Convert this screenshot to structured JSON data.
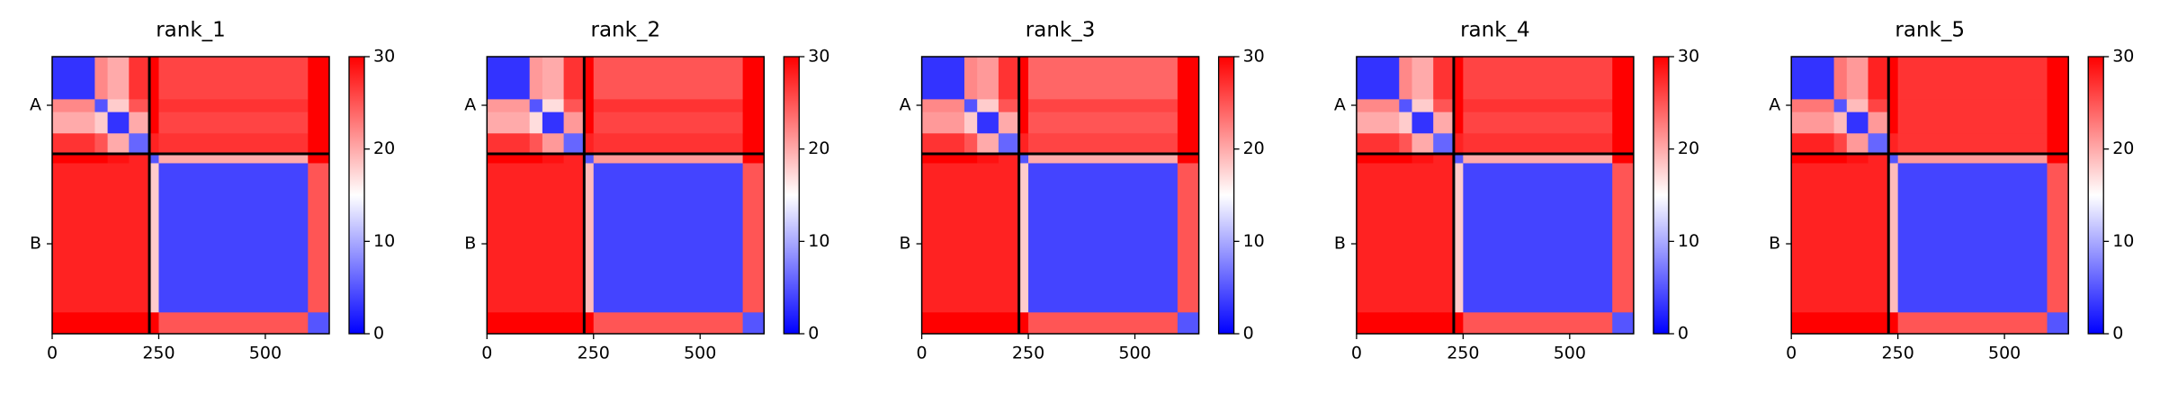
{
  "chart_data": [
    {
      "type": "heatmap",
      "title": "rank_1",
      "x_edges": [
        0,
        100,
        130,
        180,
        228,
        250,
        600,
        650
      ],
      "z": [
        [
          3,
          22,
          20,
          27,
          30,
          26,
          30
        ],
        [
          22,
          5,
          18,
          25,
          30,
          27,
          30
        ],
        [
          20,
          18,
          3,
          20,
          30,
          26,
          30
        ],
        [
          27,
          25,
          20,
          6,
          28,
          27,
          30
        ],
        [
          30,
          30,
          29,
          28,
          5,
          20,
          30
        ],
        [
          28,
          28,
          28,
          28,
          18,
          4,
          25
        ],
        [
          30,
          30,
          30,
          30,
          30,
          25,
          5
        ]
      ],
      "xlim": [
        0,
        650
      ],
      "ylim": [
        650,
        0
      ],
      "xticks": [
        0,
        250,
        500
      ],
      "yticks": [
        {
          "value": 114,
          "label": "A"
        },
        {
          "value": 439,
          "label": "B"
        }
      ],
      "chain_breaks": [
        228
      ],
      "colormap": "bwr",
      "clim": [
        0,
        30
      ],
      "cticks": [
        0,
        10,
        20,
        30
      ]
    },
    {
      "type": "heatmap",
      "title": "rank_2",
      "x_edges": [
        0,
        100,
        130,
        180,
        228,
        250,
        600,
        650
      ],
      "z": [
        [
          3,
          21,
          20,
          27,
          30,
          25,
          30
        ],
        [
          21,
          5,
          17,
          25,
          30,
          27,
          30
        ],
        [
          20,
          17,
          3,
          21,
          30,
          26,
          30
        ],
        [
          27,
          25,
          21,
          6,
          28,
          27,
          30
        ],
        [
          30,
          30,
          29,
          28,
          5,
          21,
          30
        ],
        [
          28,
          28,
          28,
          28,
          19,
          4,
          25
        ],
        [
          30,
          30,
          30,
          30,
          30,
          25,
          5
        ]
      ],
      "xlim": [
        0,
        650
      ],
      "ylim": [
        650,
        0
      ],
      "xticks": [
        0,
        250,
        500
      ],
      "yticks": [
        {
          "value": 114,
          "label": "A"
        },
        {
          "value": 439,
          "label": "B"
        }
      ],
      "chain_breaks": [
        228
      ],
      "colormap": "bwr",
      "clim": [
        0,
        30
      ],
      "cticks": [
        0,
        10,
        20,
        30
      ]
    },
    {
      "type": "heatmap",
      "title": "rank_3",
      "x_edges": [
        0,
        100,
        130,
        180,
        228,
        250,
        600,
        650
      ],
      "z": [
        [
          3,
          22,
          21,
          27,
          30,
          24,
          30
        ],
        [
          22,
          5,
          18,
          25,
          30,
          26,
          30
        ],
        [
          21,
          18,
          3,
          20,
          30,
          25,
          30
        ],
        [
          27,
          25,
          20,
          6,
          28,
          26,
          30
        ],
        [
          30,
          30,
          29,
          28,
          5,
          20,
          30
        ],
        [
          28,
          28,
          28,
          28,
          18,
          4,
          25
        ],
        [
          30,
          30,
          30,
          30,
          30,
          25,
          5
        ]
      ],
      "xlim": [
        0,
        650
      ],
      "ylim": [
        650,
        0
      ],
      "xticks": [
        0,
        250,
        500
      ],
      "yticks": [
        {
          "value": 114,
          "label": "A"
        },
        {
          "value": 439,
          "label": "B"
        }
      ],
      "chain_breaks": [
        228
      ],
      "colormap": "bwr",
      "clim": [
        0,
        30
      ],
      "cticks": [
        0,
        10,
        20,
        30
      ]
    },
    {
      "type": "heatmap",
      "title": "rank_4",
      "x_edges": [
        0,
        100,
        130,
        180,
        228,
        250,
        600,
        650
      ],
      "z": [
        [
          3,
          22,
          20,
          27,
          30,
          26,
          30
        ],
        [
          22,
          5,
          18,
          25,
          30,
          27,
          30
        ],
        [
          20,
          18,
          3,
          20,
          30,
          26,
          30
        ],
        [
          27,
          25,
          20,
          6,
          28,
          27,
          30
        ],
        [
          30,
          30,
          29,
          28,
          5,
          20,
          30
        ],
        [
          28,
          28,
          28,
          28,
          18,
          4,
          25
        ],
        [
          30,
          30,
          30,
          30,
          30,
          25,
          5
        ]
      ],
      "xlim": [
        0,
        650
      ],
      "ylim": [
        650,
        0
      ],
      "xticks": [
        0,
        250,
        500
      ],
      "yticks": [
        {
          "value": 114,
          "label": "A"
        },
        {
          "value": 439,
          "label": "B"
        }
      ],
      "chain_breaks": [
        228
      ],
      "colormap": "bwr",
      "clim": [
        0,
        30
      ],
      "cticks": [
        0,
        10,
        20,
        30
      ]
    },
    {
      "type": "heatmap",
      "title": "rank_5",
      "x_edges": [
        0,
        100,
        130,
        180,
        228,
        250,
        600,
        650
      ],
      "z": [
        [
          3,
          23,
          21,
          28,
          30,
          27,
          30
        ],
        [
          23,
          5,
          19,
          26,
          30,
          27,
          30
        ],
        [
          21,
          19,
          3,
          21,
          30,
          27,
          30
        ],
        [
          28,
          26,
          21,
          6,
          28,
          27,
          30
        ],
        [
          30,
          30,
          29,
          28,
          5,
          21,
          30
        ],
        [
          28,
          28,
          28,
          28,
          19,
          4,
          25
        ],
        [
          30,
          30,
          30,
          30,
          30,
          25,
          5
        ]
      ],
      "xlim": [
        0,
        650
      ],
      "ylim": [
        650,
        0
      ],
      "xticks": [
        0,
        250,
        500
      ],
      "yticks": [
        {
          "value": 114,
          "label": "A"
        },
        {
          "value": 439,
          "label": "B"
        }
      ],
      "chain_breaks": [
        228
      ],
      "colormap": "bwr",
      "clim": [
        0,
        30
      ],
      "cticks": [
        0,
        10,
        20,
        30
      ]
    }
  ]
}
